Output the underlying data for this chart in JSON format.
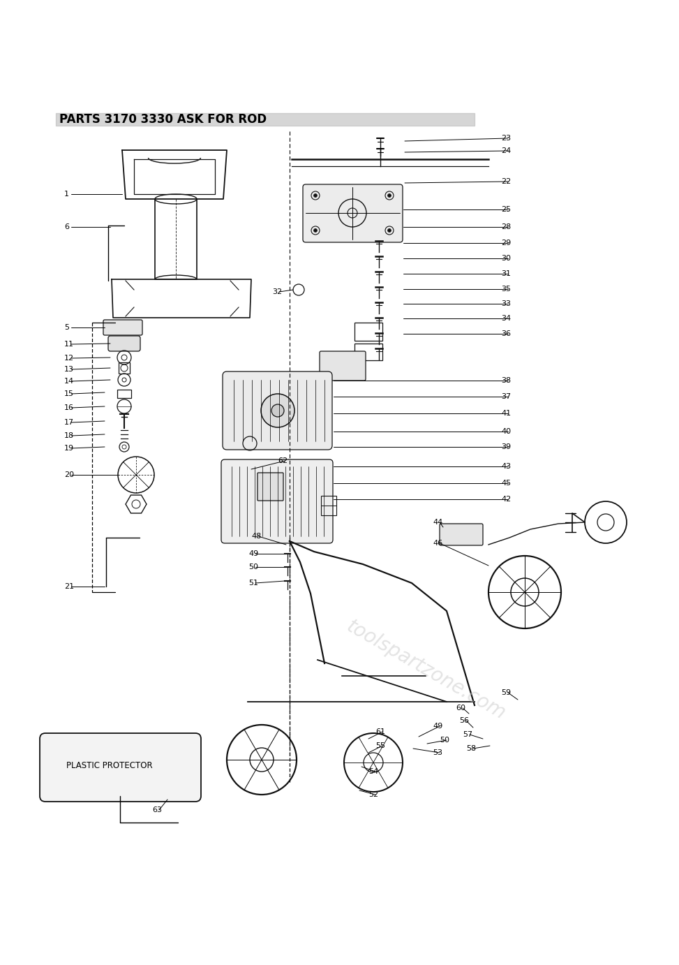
{
  "title": "PARTS 3170 3330 ASK FOR ROD",
  "bg_color": "#ffffff",
  "fig_width": 9.73,
  "fig_height": 13.82,
  "watermark_text": "toolspartzone.com",
  "watermark_color": "#c8c8c8",
  "label_color": "#000000",
  "line_color": "#000000",
  "diagram_color": "#111111"
}
